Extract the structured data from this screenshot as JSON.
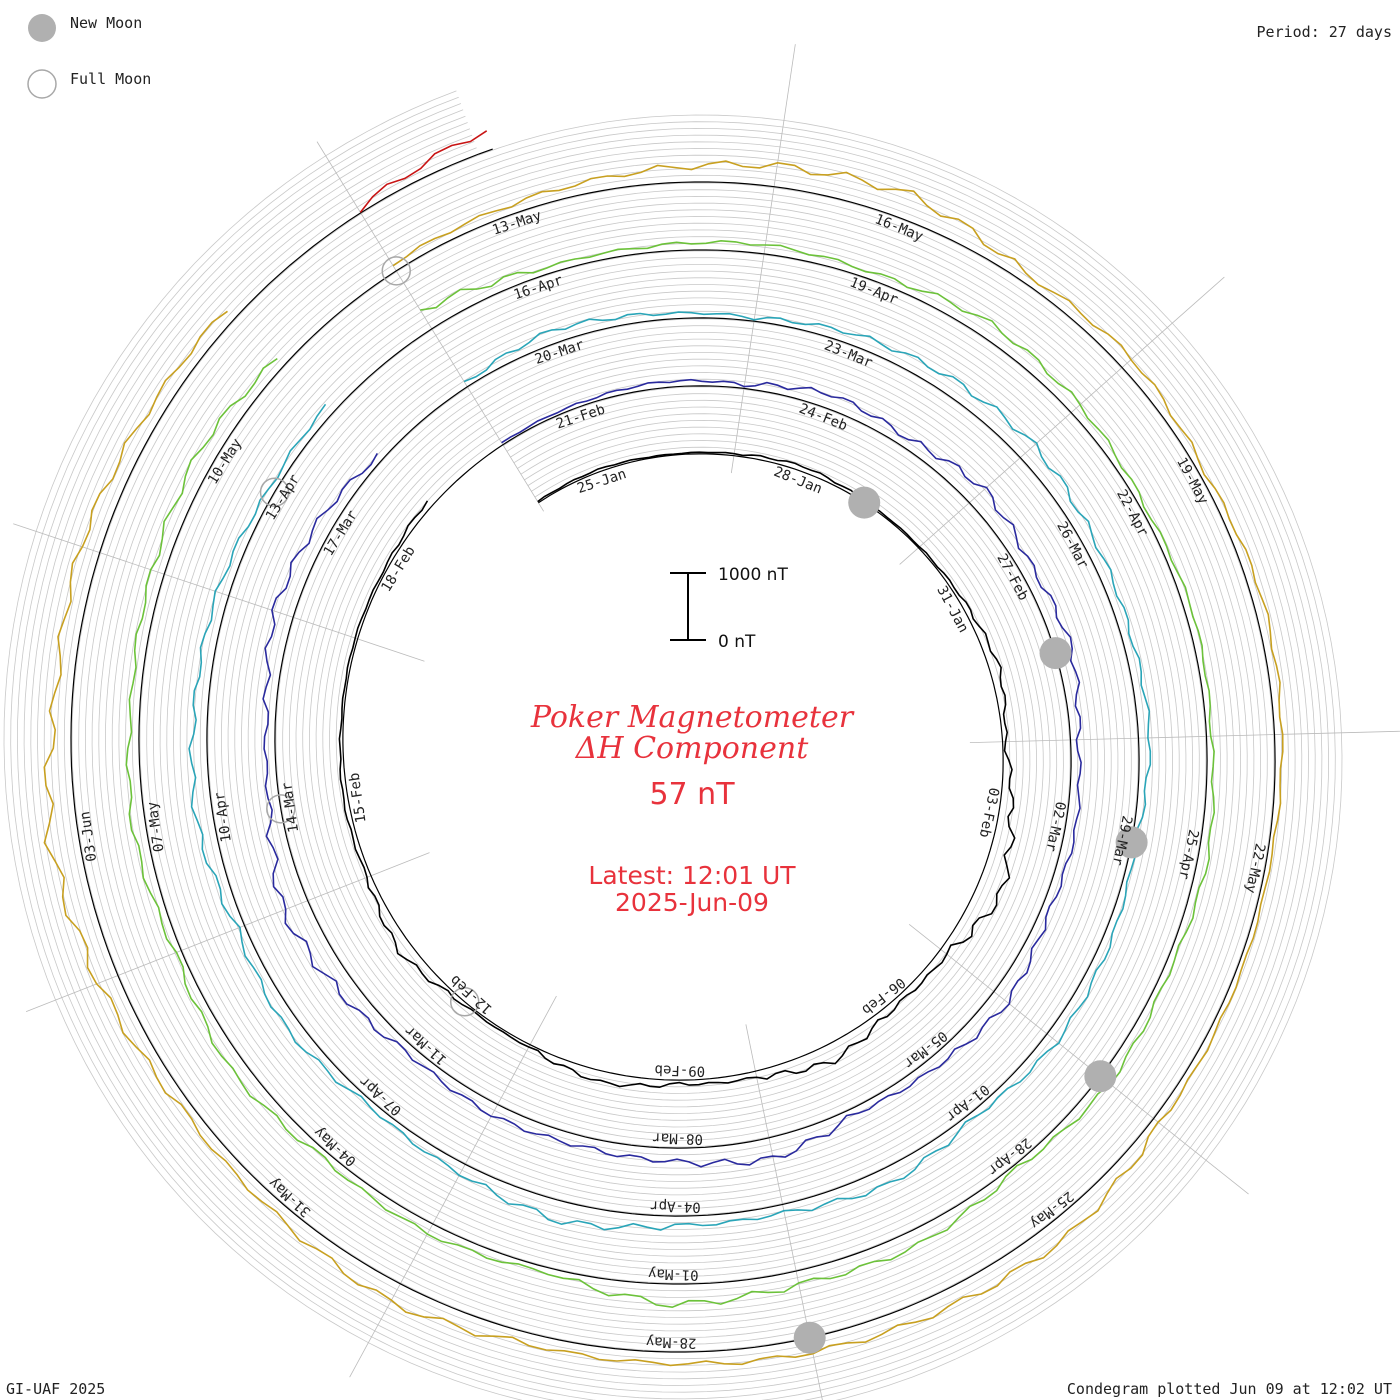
{
  "legend": {
    "new_moon_label": "New Moon",
    "full_moon_label": "Full Moon",
    "new_moon_color": "#b0b0b0",
    "full_moon_color": "#a8a8a8"
  },
  "period_label": "Period: 27 days",
  "footer_left": "GI-UAF 2025",
  "footer_right": "Condegram plotted Jun 09 at 12:02 UT",
  "center": {
    "title_line1": "Poker Magnetometer",
    "title_line2": "ΔH Component",
    "value": "57 nT",
    "latest_line1": "Latest: 12:01 UT",
    "latest_line2": "2025-Jun-09",
    "scale_top": "1000 nT",
    "scale_bottom": "0 nT",
    "accent_color": "#e8323c"
  },
  "chart_data": {
    "type": "line",
    "subtype": "spiral condegram",
    "period_days": 27,
    "start_date": "2025-01-24",
    "end_date": "2025-06-09",
    "units": "nT",
    "scale_bar_nT": [
      0,
      1000
    ],
    "grid": true,
    "latest_value_nT": 57,
    "date_labels": [
      "25-Jan",
      "28-Jan",
      "31-Jan",
      "03-Feb",
      "06-Feb",
      "09-Feb",
      "12-Feb",
      "15-Feb",
      "18-Feb",
      "21-Feb",
      "24-Feb",
      "27-Feb",
      "02-Mar",
      "05-Mar",
      "08-Mar",
      "11-Mar",
      "14-Mar",
      "17-Mar",
      "20-Mar",
      "23-Mar",
      "26-Mar",
      "29-Mar",
      "01-Apr",
      "04-Apr",
      "07-Apr",
      "10-Apr",
      "13-Apr",
      "16-Apr",
      "19-Apr",
      "22-Apr",
      "25-Apr",
      "28-Apr",
      "01-May",
      "04-May",
      "07-May",
      "10-May",
      "13-May",
      "16-May",
      "19-May",
      "22-May",
      "25-May",
      "28-May",
      "31-May",
      "03-Jun"
    ],
    "new_moons": [
      "2025-01-29",
      "2025-02-28",
      "2025-03-29",
      "2025-04-27",
      "2025-05-27"
    ],
    "full_moons": [
      "2025-02-12",
      "2025-03-14",
      "2025-04-13",
      "2025-05-12"
    ],
    "series": [
      {
        "name": "25-Jan – 21-Feb",
        "color": "#000000",
        "values": [
          20,
          40,
          15,
          30,
          80,
          25,
          20,
          60,
          150,
          40,
          200,
          380,
          120,
          80,
          260,
          90,
          60,
          170,
          40,
          30,
          200,
          60,
          70,
          30,
          40,
          35,
          110
        ]
      },
      {
        "name": "21-Feb – 20-Mar",
        "color": "#2a2a9e",
        "values": [
          30,
          50,
          90,
          60,
          220,
          140,
          300,
          180,
          250,
          110,
          160,
          120,
          260,
          160,
          90,
          320,
          200,
          150,
          180,
          110,
          260,
          400,
          160,
          130,
          300,
          230,
          60
        ]
      },
      {
        "name": "20-Mar – 16-Apr",
        "color": "#2aa5b8",
        "values": [
          60,
          200,
          90,
          50,
          170,
          230,
          280,
          180,
          140,
          170,
          60,
          130,
          190,
          80,
          250,
          120,
          140,
          300,
          160,
          70,
          210,
          120,
          260,
          200,
          180,
          90,
          150
        ]
      },
      {
        "name": "16-Apr – 13-May",
        "color": "#6cc23a",
        "values": [
          320,
          100,
          90,
          140,
          100,
          230,
          170,
          60,
          110,
          70,
          150,
          90,
          180,
          60,
          240,
          200,
          310,
          70,
          160,
          100,
          230,
          90,
          200,
          130,
          190,
          270,
          120
        ]
      },
      {
        "name": "13-May – 09-Jun",
        "color": "#c8a020",
        "values": [
          110,
          140,
          200,
          310,
          380,
          120,
          200,
          80,
          150,
          110,
          60,
          80,
          120,
          310,
          260,
          220,
          170,
          160,
          310,
          180,
          140,
          300,
          440,
          240,
          300,
          210,
          180
        ]
      },
      {
        "name": "03-Jun – 09-Jun",
        "color": "#c81414",
        "values": [
          60,
          300,
          260,
          380,
          220,
          330,
          140,
          310,
          280,
          170,
          110,
          57
        ]
      }
    ]
  }
}
